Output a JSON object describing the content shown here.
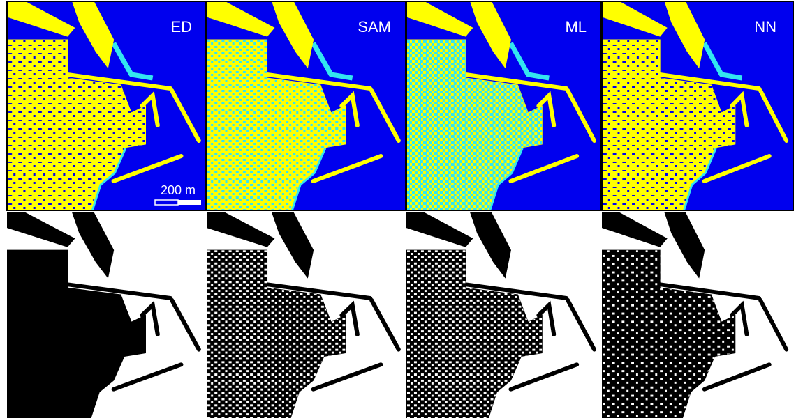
{
  "panels": [
    {
      "label": "ED"
    },
    {
      "label": "SAM"
    },
    {
      "label": "ML"
    },
    {
      "label": "NN"
    }
  ],
  "scale_bar": {
    "label": "200 m"
  }
}
